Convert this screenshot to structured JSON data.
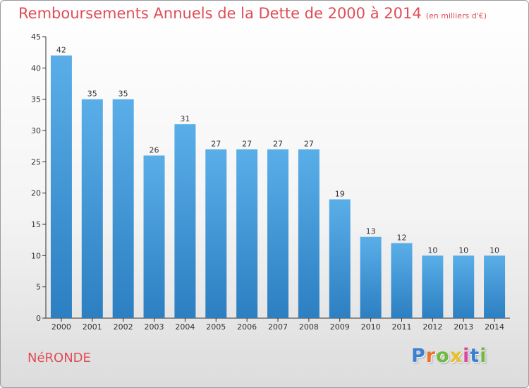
{
  "header": {
    "title": "Remboursements Annuels de la Dette de 2000 à 2014",
    "subtitle": "(en milliers d'€)"
  },
  "commune_name": "NéRONDE",
  "logo": {
    "letters": [
      "P",
      "r",
      "o",
      "x",
      "i",
      "t",
      "i"
    ],
    "colors": [
      "#3b7fd1",
      "#e8742a",
      "#6dbb3f",
      "#e8c02a",
      "#d64a9e",
      "#3b7fd1",
      "#6dbb3f"
    ]
  },
  "colors": {
    "bar_top": "#5aaee8",
    "bar_bottom": "#2c7fc1",
    "axis": "#333333",
    "title": "#e04c56"
  },
  "chart_data": {
    "type": "bar",
    "title": "Remboursements Annuels de la Dette de 2000 à 2014",
    "subtitle": "(en milliers d'€)",
    "categories": [
      "2000",
      "2001",
      "2002",
      "2003",
      "2004",
      "2005",
      "2006",
      "2007",
      "2008",
      "2009",
      "2010",
      "2011",
      "2012",
      "2013",
      "2014"
    ],
    "values": [
      42,
      35,
      35,
      26,
      31,
      27,
      27,
      27,
      27,
      19,
      13,
      12,
      10,
      10,
      10
    ],
    "ylim": [
      0,
      45
    ],
    "yticks": [
      0,
      5,
      10,
      15,
      20,
      25,
      30,
      35,
      40,
      45
    ],
    "xlabel": "",
    "ylabel": "",
    "grid": false,
    "data_labels": true
  }
}
